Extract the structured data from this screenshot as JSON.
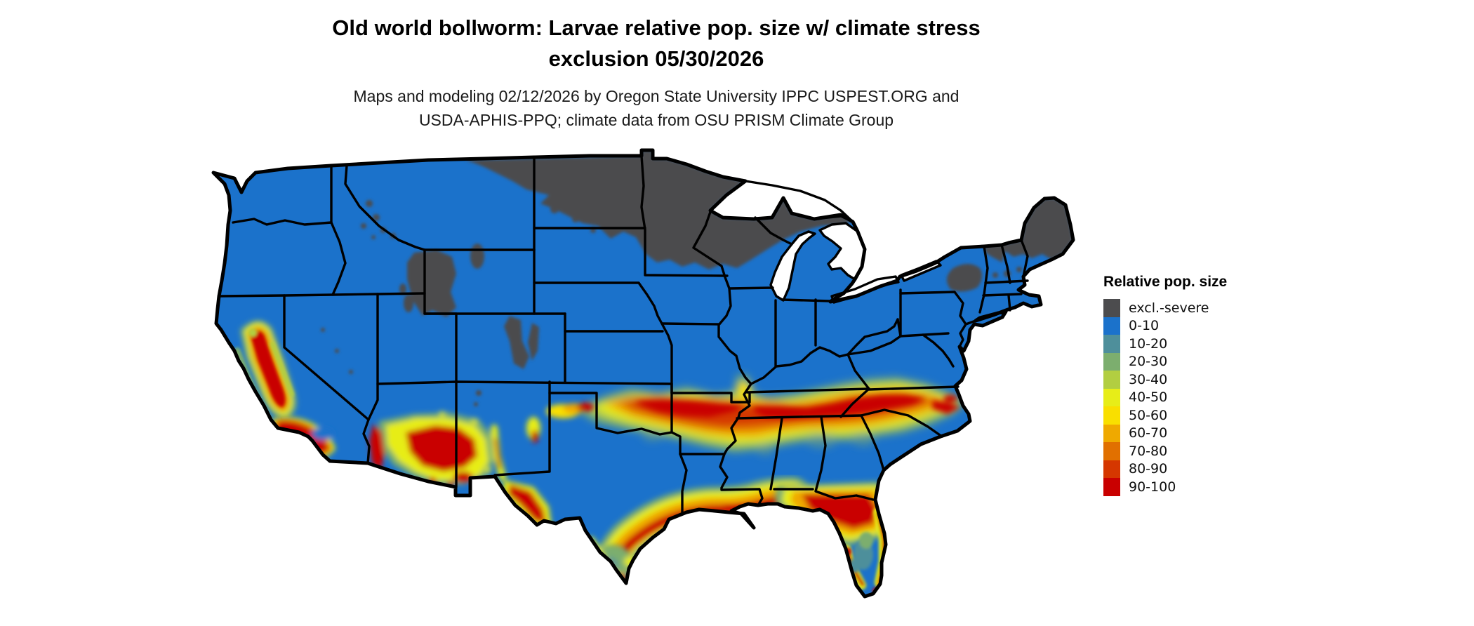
{
  "header": {
    "title_line1": "Old world bollworm: Larvae relative pop. size w/ climate stress",
    "title_line2": "exclusion 05/30/2026",
    "subtitle_line1": "Maps and modeling 02/12/2026 by Oregon State University IPPC USPEST.ORG and",
    "subtitle_line2": "USDA-APHIS-PPQ; climate data from OSU PRISM Climate Group"
  },
  "legend": {
    "title": "Relative pop. size",
    "entries": [
      {
        "label": "excl.-severe",
        "color": "#4C4C4E"
      },
      {
        "label": "0-10",
        "color": "#1B72CB"
      },
      {
        "label": "10-20",
        "color": "#4E8F9B"
      },
      {
        "label": "20-30",
        "color": "#7CAE6E"
      },
      {
        "label": "30-40",
        "color": "#B2CE41"
      },
      {
        "label": "40-50",
        "color": "#E7ED18"
      },
      {
        "label": "50-60",
        "color": "#F9DF00"
      },
      {
        "label": "60-70",
        "color": "#EFA900"
      },
      {
        "label": "70-80",
        "color": "#E17000"
      },
      {
        "label": "80-90",
        "color": "#D53700"
      },
      {
        "label": "90-100",
        "color": "#C90000"
      }
    ]
  },
  "map": {
    "region": "Contiguous United States",
    "depicts": "Raster map of relative larval population size; gray = excluded by severe climate stress (northern tier, high mountains), red band of high values across the southern states, California Central Valley, Gulf Coast and Florida coasts",
    "background": "#FFFFFF",
    "border_color": "#000000",
    "base_value_class": "0-10"
  }
}
